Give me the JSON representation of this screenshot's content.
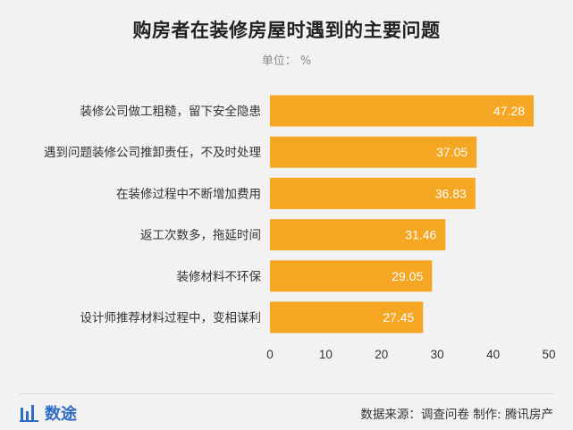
{
  "colors": {
    "bar": "#f5a623",
    "bar_label": "#ffffff",
    "axis_text": "#333333",
    "brand": "#2f6cc8",
    "background": "#f2f2f2"
  },
  "chart_data": {
    "type": "bar",
    "orientation": "horizontal",
    "title": "购房者在装修房屋时遇到的主要问题",
    "unit_label": "单位： %",
    "categories": [
      "装修公司做工粗糙，留下安全隐患",
      "遇到问题装修公司推卸责任，不及时处理",
      "在装修过程中不断增加费用",
      "返工次数多，拖延时间",
      "装修材料不环保",
      "设计师推荐材料过程中，变相谋利"
    ],
    "values": [
      47.28,
      37.05,
      36.83,
      31.46,
      29.05,
      27.45
    ],
    "value_labels": [
      "47.28",
      "37.05",
      "36.83",
      "31.46",
      "29.05",
      "27.45"
    ],
    "xlim": [
      0,
      50
    ],
    "xticks": [
      0,
      10,
      20,
      30,
      40,
      50
    ],
    "xtick_labels": [
      "0",
      "10",
      "20",
      "30",
      "40",
      "50"
    ],
    "grid": false,
    "legend": "none"
  },
  "footer": {
    "brand_icon": "bar-chart-icon",
    "brand_name": "数途",
    "source": "数据来源：调查问卷  制作: 腾讯房产"
  }
}
